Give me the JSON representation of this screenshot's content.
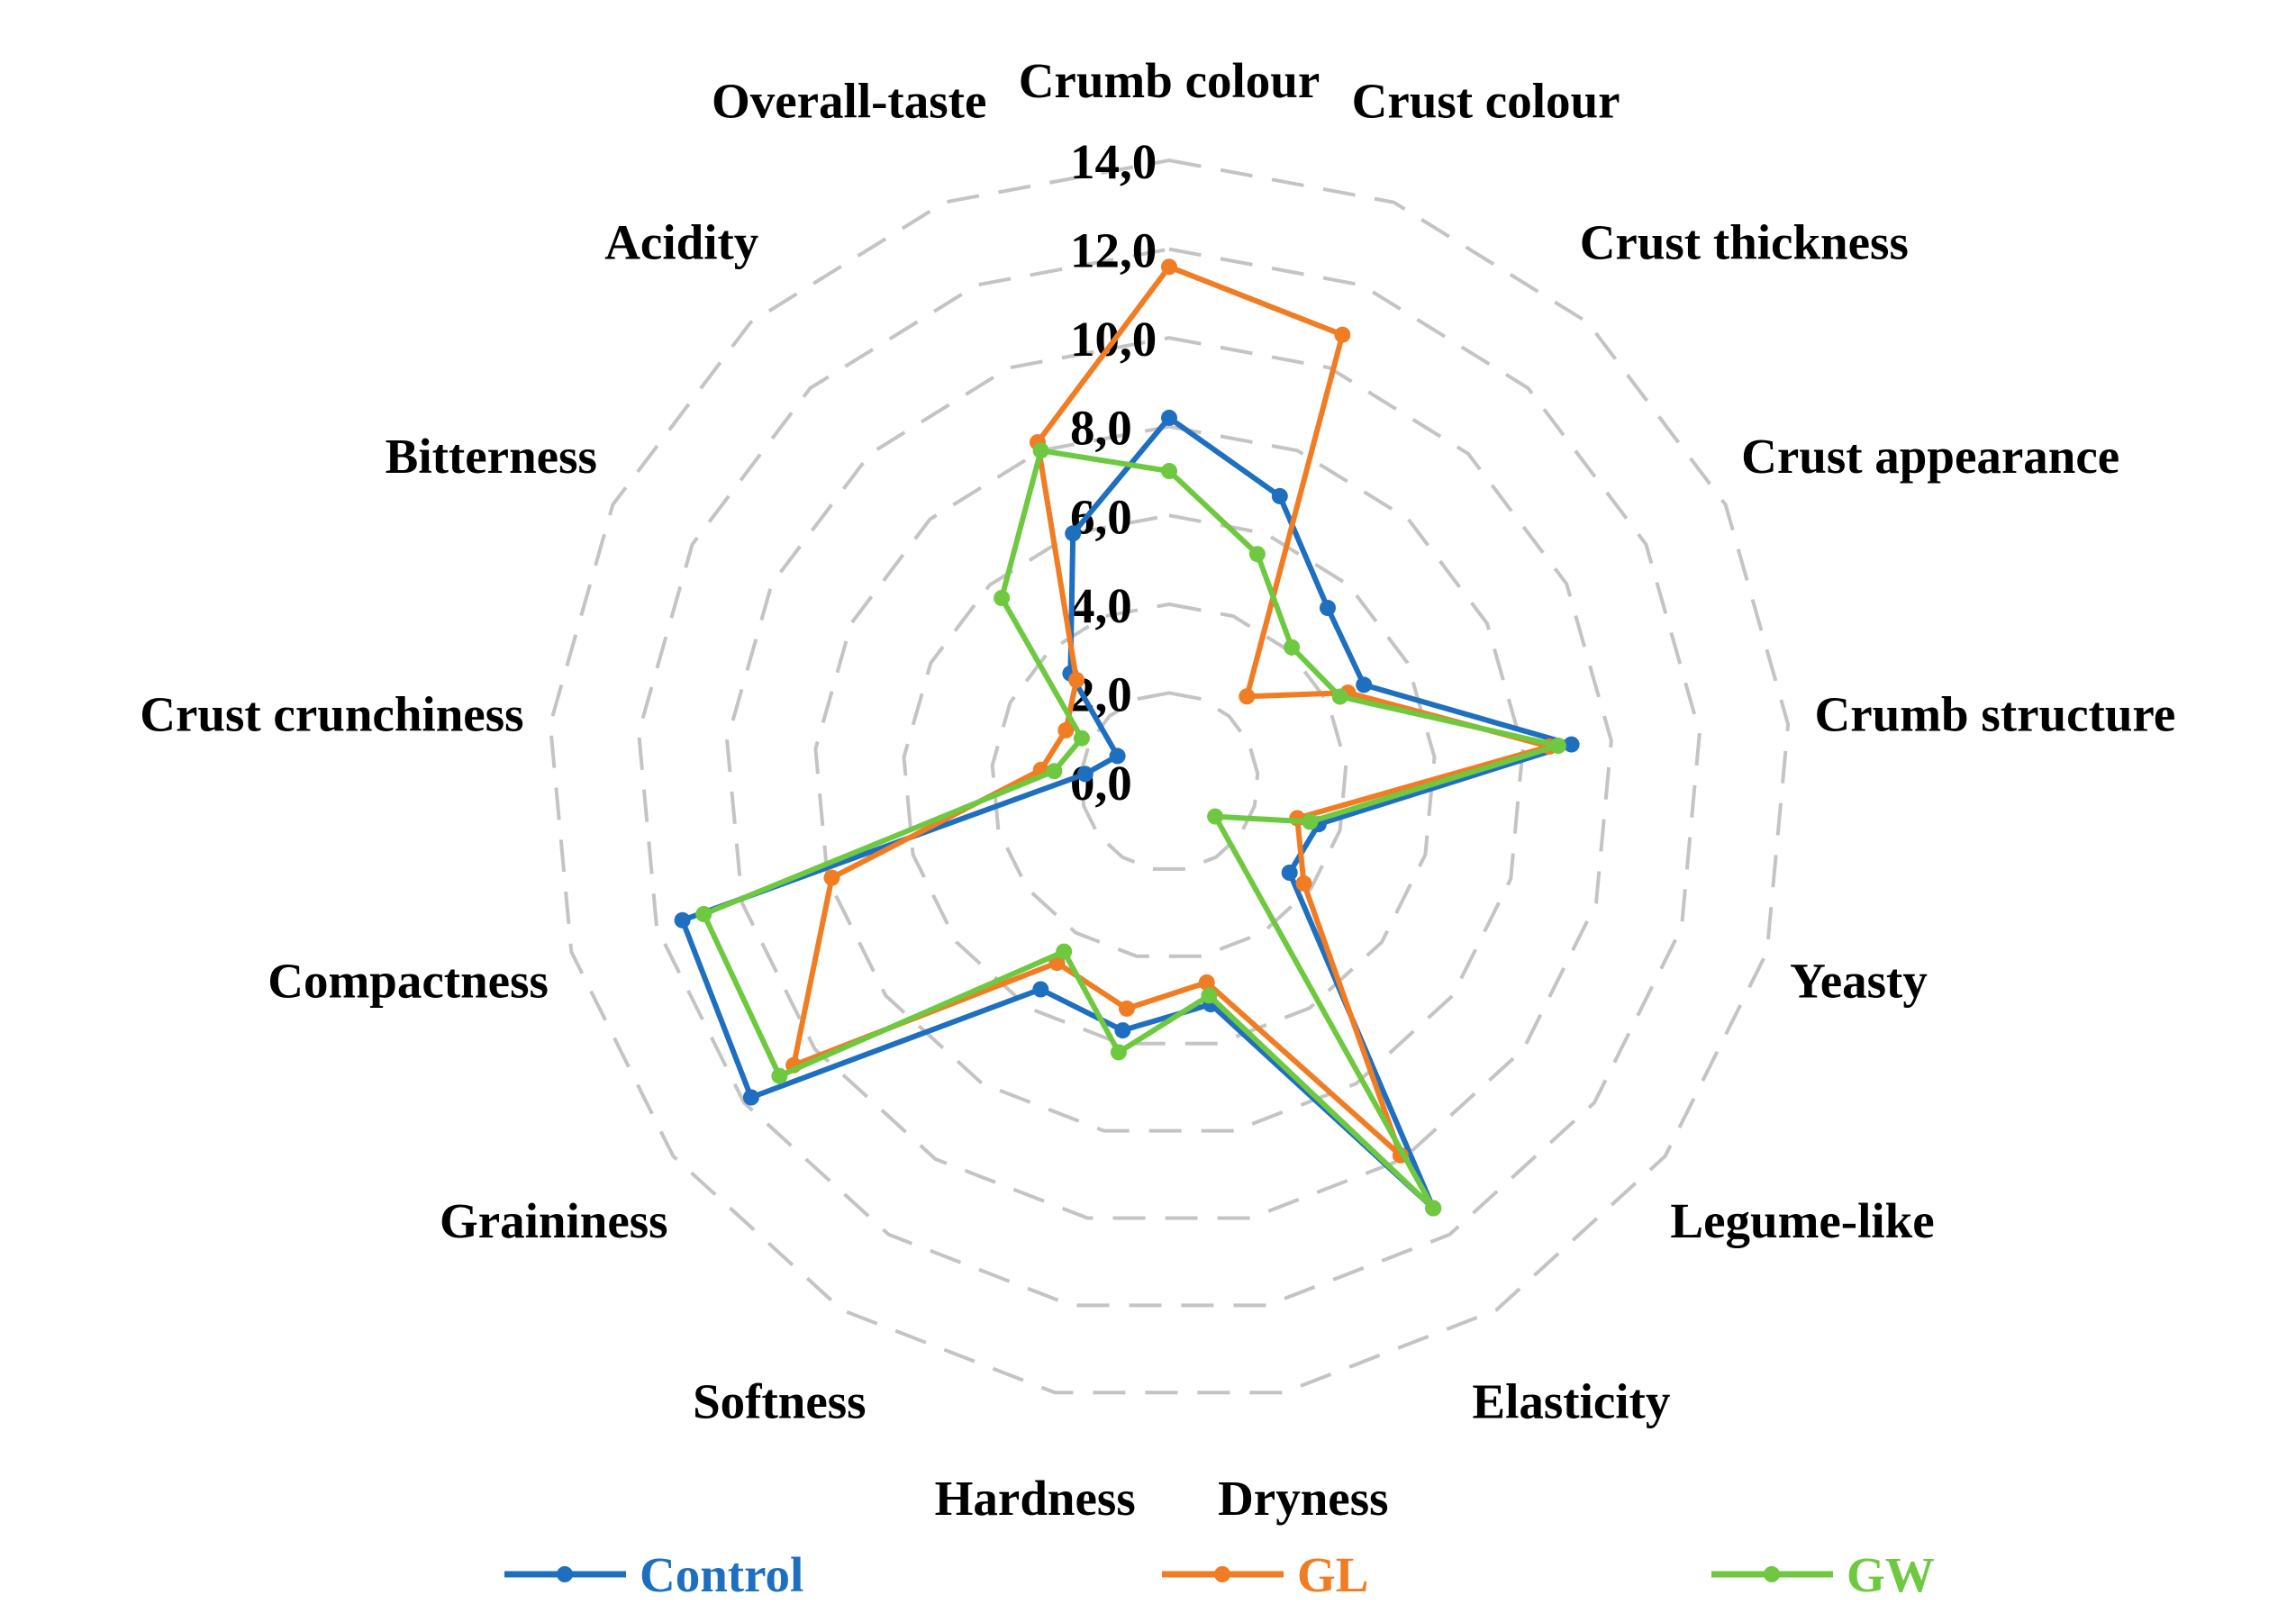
{
  "chart_data": {
    "type": "radar",
    "axes": [
      "Crumb colour",
      "Crust colour",
      "Crust thickness",
      "Crust appearance",
      "Crumb structure",
      "Yeasty",
      "Legume-like",
      "Elasticity",
      "Dryness",
      "Hardness",
      "Softness",
      "Graininess",
      "Compactness",
      "Crust crunchiness",
      "Bitterness",
      "Acidity",
      "Overall-taste"
    ],
    "ticks": [
      "0,0",
      "2,0",
      "4,0",
      "6,0",
      "8,0",
      "10,0",
      "12,0",
      "14,0"
    ],
    "range": [
      0,
      14
    ],
    "tick_step": 2,
    "grid": true,
    "legend_position": "bottom",
    "series": [
      {
        "name": "Control",
        "color": "#1f6fc0",
        "values": [
          8.2,
          6.9,
          5.3,
          4.9,
          9.1,
          3.5,
          3.4,
          11.3,
          5.1,
          5.7,
          5.5,
          11.8,
          11.4,
          1.9,
          1.3,
          3.3,
          6.0
        ]
      },
      {
        "name": "GL",
        "color": "#f07c23",
        "values": [
          11.6,
          10.8,
          2.6,
          4.5,
          8.6,
          3.0,
          3.8,
          9.9,
          4.6,
          5.2,
          4.8,
          10.6,
          7.9,
          2.9,
          2.6,
          3.1,
          8.2
        ]
      },
      {
        "name": "GW",
        "color": "#6ec940",
        "values": [
          7.0,
          5.5,
          4.1,
          4.3,
          8.8,
          3.3,
          1.3,
          11.3,
          4.9,
          6.2,
          4.5,
          11.0,
          10.9,
          2.6,
          2.2,
          5.6,
          8.0
        ]
      }
    ]
  }
}
